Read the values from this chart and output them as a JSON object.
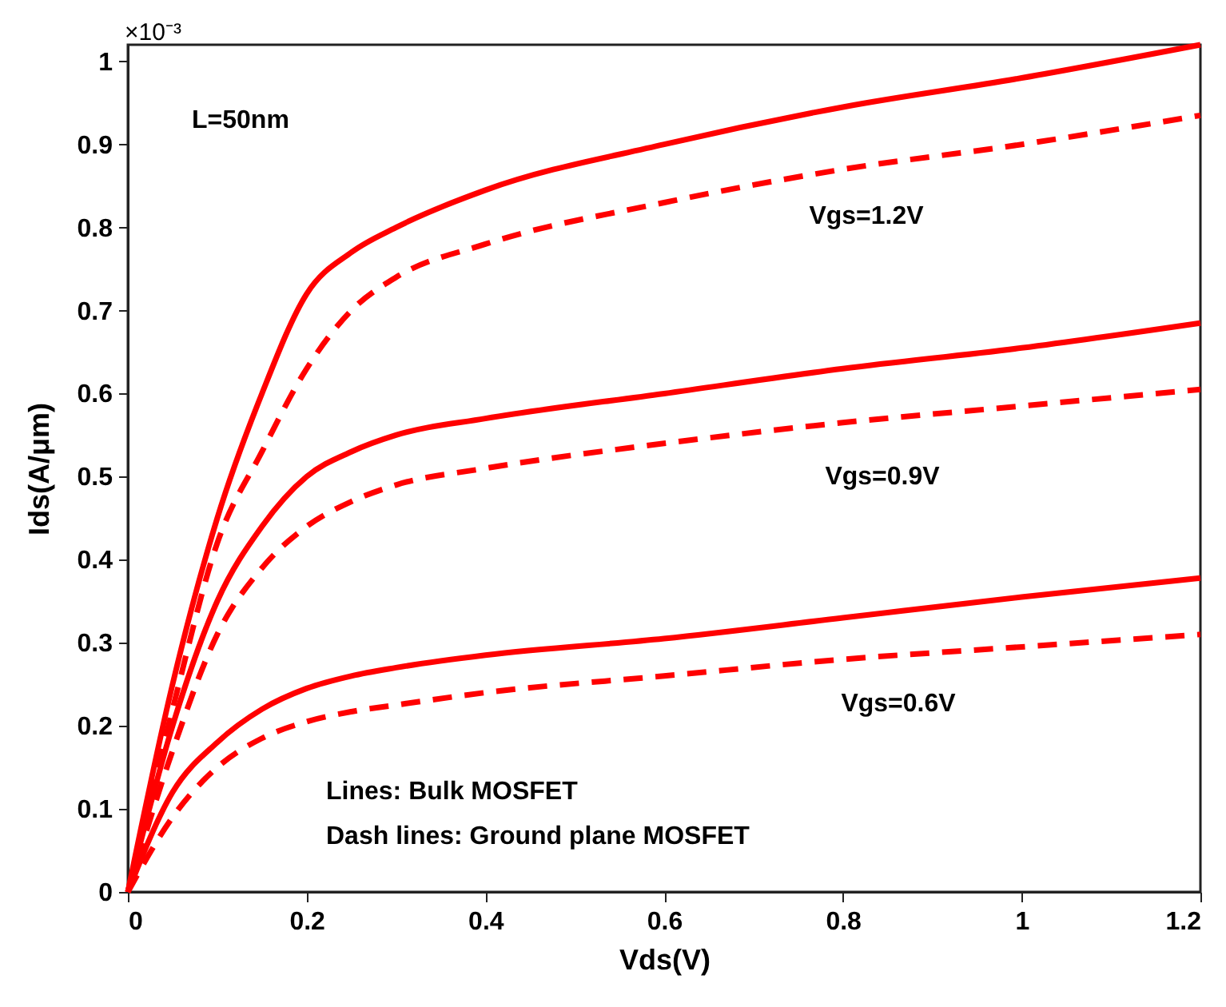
{
  "chart_data": {
    "type": "line",
    "xlabel": "Vds(V)",
    "ylabel": "Ids(A/μm)",
    "x": [
      0,
      0.05,
      0.1,
      0.15,
      0.2,
      0.25,
      0.3,
      0.4,
      0.6,
      0.8,
      1.0,
      1.2
    ],
    "series": [
      {
        "color": "#ff0000",
        "line_style": "solid",
        "values": [
          0,
          0.25,
          0.45,
          0.6,
          0.72,
          0.77,
          0.8,
          0.845,
          0.9,
          0.945,
          0.98,
          1.02
        ]
      },
      {
        "color": "#ff0000",
        "line_style": "dashed",
        "values": [
          0,
          0.22,
          0.42,
          0.53,
          0.63,
          0.7,
          0.74,
          0.78,
          0.83,
          0.87,
          0.9,
          0.935
        ]
      },
      {
        "color": "#ff0000",
        "line_style": "solid",
        "values": [
          0,
          0.2,
          0.35,
          0.44,
          0.5,
          0.53,
          0.55,
          0.57,
          0.6,
          0.63,
          0.655,
          0.685
        ]
      },
      {
        "color": "#ff0000",
        "line_style": "dashed",
        "values": [
          0,
          0.17,
          0.31,
          0.39,
          0.44,
          0.47,
          0.49,
          0.51,
          0.54,
          0.565,
          0.585,
          0.605
        ]
      },
      {
        "color": "#ff0000",
        "line_style": "solid",
        "values": [
          0,
          0.12,
          0.18,
          0.22,
          0.245,
          0.26,
          0.27,
          0.285,
          0.305,
          0.33,
          0.355,
          0.378
        ]
      },
      {
        "color": "#ff0000",
        "line_style": "dashed",
        "values": [
          0,
          0.09,
          0.15,
          0.185,
          0.205,
          0.217,
          0.225,
          0.24,
          0.26,
          0.28,
          0.295,
          0.31
        ]
      }
    ],
    "xlim": [
      0,
      1.2
    ],
    "xticks": [
      0,
      0.2,
      0.4,
      0.6,
      0.8,
      1,
      1.2
    ],
    "ylim": [
      0,
      1.02
    ],
    "yticks": [
      0,
      0.1,
      0.2,
      0.3,
      0.4,
      0.5,
      0.6,
      0.7,
      0.8,
      0.9,
      1
    ],
    "grid": false,
    "marker": "none",
    "annotations": [
      "×10⁻³",
      "L=50nm",
      "Lines: Bulk MOSFET",
      "Dash lines: Ground plane MOSFET",
      "Vgs=1.2V",
      "Vgs=0.9V",
      "Vgs=0.6V"
    ]
  }
}
